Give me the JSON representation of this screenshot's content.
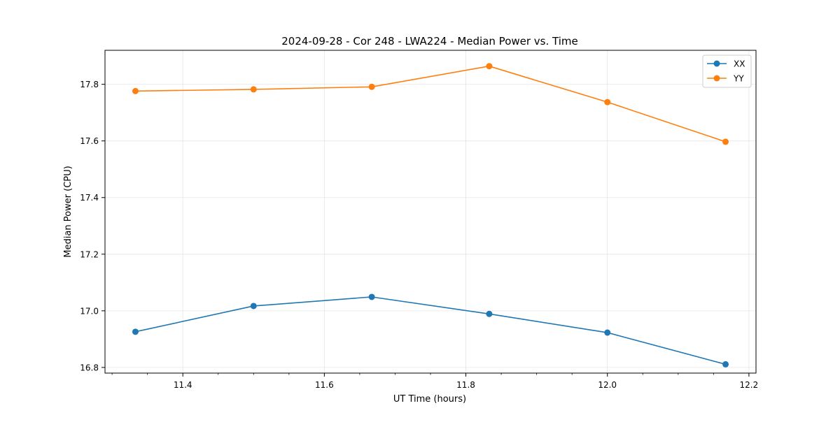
{
  "chart_data": {
    "type": "line",
    "title": "2024-09-28 - Cor 248 - LWA224 - Median Power vs. Time",
    "xlabel": "UT Time (hours)",
    "ylabel": "Median Power (CPU)",
    "xlim": [
      11.29,
      12.21
    ],
    "ylim": [
      16.78,
      17.92
    ],
    "xticks": [
      11.4,
      11.6,
      11.8,
      12.0,
      12.2
    ],
    "xtick_labels": [
      "11.4",
      "11.6",
      "11.8",
      "12.0",
      "12.2"
    ],
    "yticks": [
      16.8,
      17.0,
      17.2,
      17.4,
      17.6,
      17.8
    ],
    "ytick_labels": [
      "16.8",
      "17.0",
      "17.2",
      "17.4",
      "17.6",
      "17.8"
    ],
    "grid": true,
    "legend_position": "top-right",
    "x": [
      11.333,
      11.5,
      11.667,
      11.833,
      12.0,
      12.167
    ],
    "series": [
      {
        "name": "XX",
        "color": "#1f77b4",
        "marker": "circle",
        "values": [
          16.926,
          17.017,
          17.049,
          16.989,
          16.923,
          16.811
        ]
      },
      {
        "name": "YY",
        "color": "#ff7f0e",
        "marker": "circle",
        "values": [
          17.776,
          17.782,
          17.791,
          17.864,
          17.737,
          17.597
        ]
      }
    ]
  }
}
